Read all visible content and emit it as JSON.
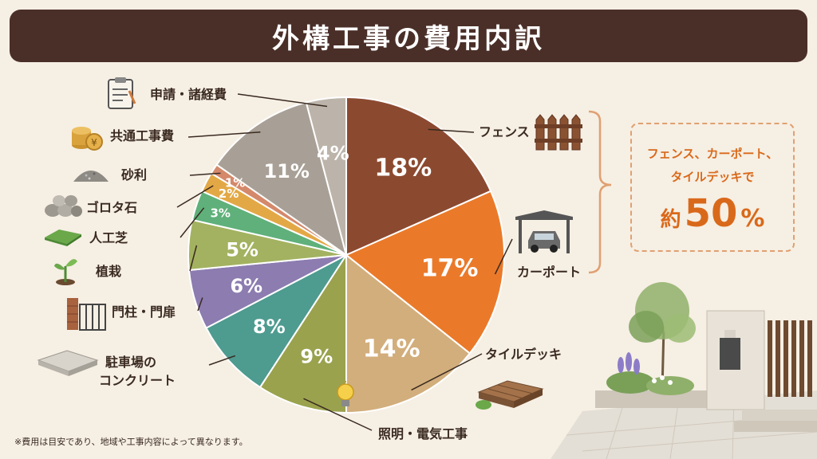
{
  "title": "外構工事の費用内訳",
  "chart_data": {
    "type": "pie",
    "slices": [
      {
        "label": "フェンス",
        "value": 18,
        "pct_label": "18%",
        "color": "#8b4a30"
      },
      {
        "label": "カーポート",
        "value": 17,
        "pct_label": "17%",
        "color": "#ea7a2a"
      },
      {
        "label": "タイルデッキ",
        "value": 14,
        "pct_label": "14%",
        "color": "#d2ae7c"
      },
      {
        "label": "照明・電気工事",
        "value": 9,
        "pct_label": "9%",
        "color": "#9aa24e"
      },
      {
        "label": "駐車場のコンクリート",
        "value": 8,
        "pct_label": "8%",
        "color": "#4e9b90"
      },
      {
        "label": "門柱・門扉",
        "value": 6,
        "pct_label": "6%",
        "color": "#8c7cb0"
      },
      {
        "label": "植栽",
        "value": 5,
        "pct_label": "5%",
        "color": "#a3b260"
      },
      {
        "label": "人工芝",
        "value": 3,
        "pct_label": "3%",
        "color": "#5fb07a"
      },
      {
        "label": "ゴロタ石",
        "value": 2,
        "pct_label": "2%",
        "color": "#e3a846"
      },
      {
        "label": "砂利",
        "value": 1,
        "pct_label": "1%",
        "color": "#d4896a"
      },
      {
        "label": "共通工事費",
        "value": 11,
        "pct_label": "11%",
        "color": "#a8a096"
      },
      {
        "label": "申請・諸経費",
        "value": 4,
        "pct_label": "4%",
        "color": "#bcb4aa"
      }
    ]
  },
  "labels": {
    "fence": "フェンス",
    "carport": "カーポート",
    "tiledeck": "タイルデッキ",
    "lighting": "照明・電気工事",
    "parking_1": "駐車場の",
    "parking_2": "コンクリート",
    "gate": "門柱・門扉",
    "planting": "植栽",
    "turf": "人工芝",
    "stones": "ゴロタ石",
    "gravel": "砂利",
    "common": "共通工事費",
    "permit": "申請・諸経費"
  },
  "callout": {
    "line1": "フェンス、カーポート、",
    "line2": "タイルデッキで",
    "prefix": "約",
    "number": "50",
    "suffix": "%",
    "bracket_color": "#e0a070",
    "text_color": "#d9691a"
  },
  "note": "※費用は目安であり、地域や工事内容によって異なります。",
  "icons": [
    "clipboard-icon",
    "coins-icon",
    "gravel-icon",
    "stones-icon",
    "turf-icon",
    "sprout-icon",
    "gate-icon",
    "concrete-slab-icon",
    "fence-icon",
    "carport-icon",
    "deck-icon",
    "lightbulb-icon"
  ]
}
